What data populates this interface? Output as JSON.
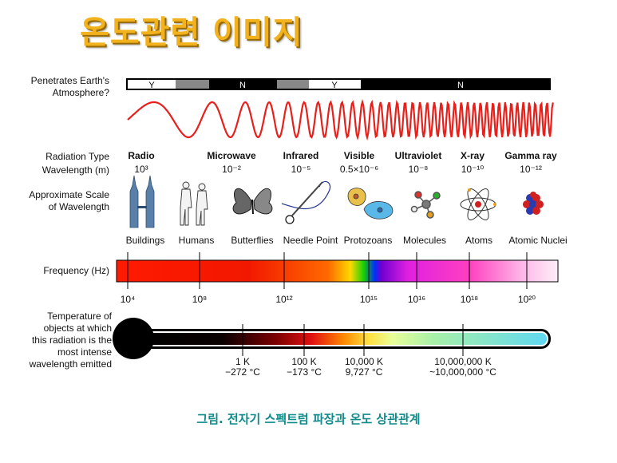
{
  "title": "온도관련 이미지",
  "atmosphere": {
    "label_line1": "Penetrates Earth's",
    "label_line2": "Atmosphere?",
    "segments": [
      "Y",
      "N",
      "Y",
      "N"
    ]
  },
  "row_labels": {
    "radiation_type": "Radiation Type",
    "wavelength": "Wavelength (m)",
    "scale_line1": "Approximate Scale",
    "scale_line2": "of Wavelength",
    "frequency": "Frequency (Hz)",
    "temp_line1": "Temperature of",
    "temp_line2": "objects at which",
    "temp_line3": "this radiation is the",
    "temp_line4": "most intense",
    "temp_line5": "wavelength emitted"
  },
  "radiation_types": [
    {
      "name": "Radio",
      "wavelength": "10³"
    },
    {
      "name": "Microwave",
      "wavelength": "10⁻²"
    },
    {
      "name": "Infrared",
      "wavelength": "10⁻⁵"
    },
    {
      "name": "Visible",
      "wavelength": "0.5×10⁻⁶"
    },
    {
      "name": "Ultraviolet",
      "wavelength": "10⁻⁸"
    },
    {
      "name": "X-ray",
      "wavelength": "10⁻¹⁰"
    },
    {
      "name": "Gamma ray",
      "wavelength": "10⁻¹²"
    }
  ],
  "scale_objects": [
    "Buildings",
    "Humans",
    "Butterflies",
    "Needle Point",
    "Protozoans",
    "Molecules",
    "Atoms",
    "Atomic Nuclei"
  ],
  "frequency_ticks": [
    "10⁴",
    "10⁸",
    "10¹²",
    "10¹⁵",
    "10¹⁶",
    "10¹⁸",
    "10²⁰"
  ],
  "temperatures": [
    {
      "kelvin": "1 K",
      "celsius": "−272 °C"
    },
    {
      "kelvin": "100 K",
      "celsius": "−173 °C"
    },
    {
      "kelvin": "10,000 K",
      "celsius": "9,727 °C"
    },
    {
      "kelvin": "10,000,000 K",
      "celsius": "~10,000,000 °C"
    }
  ],
  "caption": "그림.  전자기 스펙트럼 파장과 온도 상관관계",
  "colors": {
    "title": "#f2b21d",
    "caption": "#0f8a8a",
    "wave": "#e8201b"
  }
}
